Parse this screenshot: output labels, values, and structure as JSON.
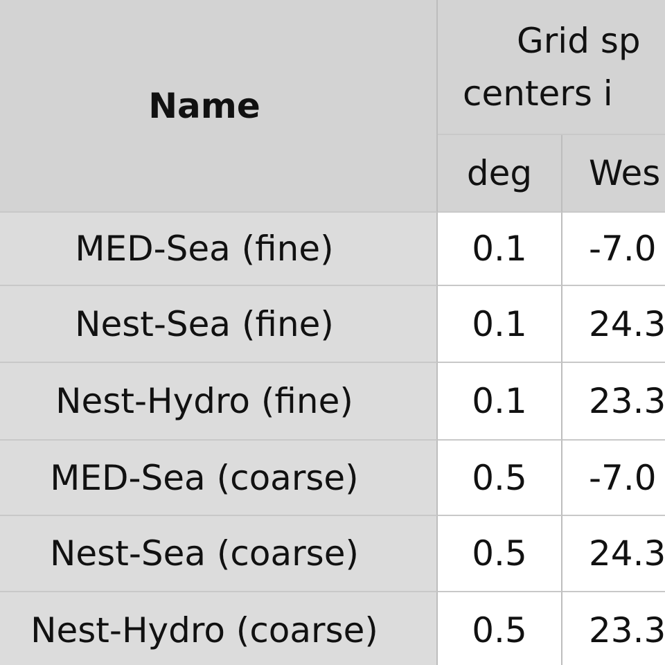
{
  "table": {
    "header": {
      "name": "Name",
      "group_lines": [
        "Grid sp",
        "centers i"
      ],
      "columns": [
        "deg",
        "Wes"
      ]
    },
    "rows": [
      [
        "MED-Sea (fine)",
        "0.1",
        "-7.0"
      ],
      [
        "Nest-Sea (fine)",
        "0.1",
        "24.3"
      ],
      [
        "Nest-Hydro (fine)",
        "0.1",
        "23.3"
      ],
      [
        "MED-Sea (coarse)",
        "0.5",
        "-7.0"
      ],
      [
        "Nest-Sea (coarse)",
        "0.5",
        "24.3"
      ],
      [
        "Nest-Hydro (coarse)",
        "0.5",
        "23.3"
      ]
    ]
  }
}
